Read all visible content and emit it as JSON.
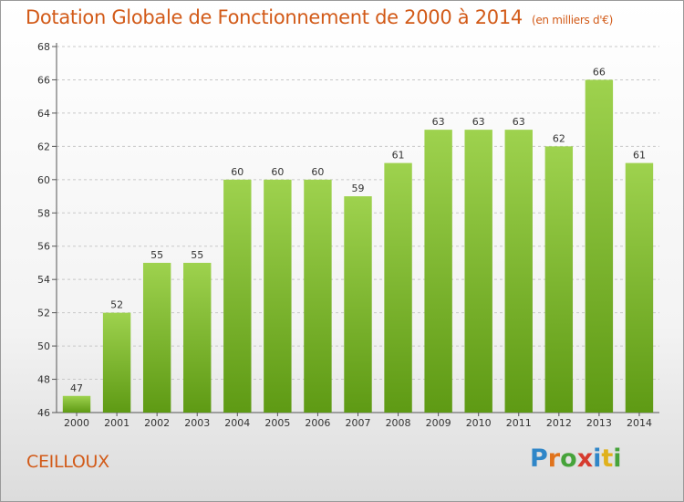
{
  "title": "Dotation Globale de Fonctionnement de 2000 à 2014",
  "unit_note": "(en milliers d'€)",
  "commune": "CEILLOUX",
  "logo_letters": [
    "P",
    "r",
    "o",
    "x",
    "i",
    "t",
    "i"
  ],
  "colors": {
    "title": "#d25a18",
    "bar_top": "#9ed24e",
    "bar_bottom": "#5e9a14",
    "grid": "#c8c8c8"
  },
  "chart_data": {
    "type": "bar",
    "title": "Dotation Globale de Fonctionnement de 2000 à 2014",
    "xlabel": "",
    "ylabel": "",
    "categories": [
      "2000",
      "2001",
      "2002",
      "2003",
      "2004",
      "2005",
      "2006",
      "2007",
      "2008",
      "2009",
      "2010",
      "2011",
      "2012",
      "2013",
      "2014"
    ],
    "values": [
      47,
      52,
      55,
      55,
      60,
      60,
      60,
      59,
      61,
      63,
      63,
      63,
      62,
      66,
      61
    ],
    "ylim": [
      46,
      68
    ],
    "yticks": [
      46,
      48,
      50,
      52,
      54,
      56,
      58,
      60,
      62,
      64,
      66,
      68
    ],
    "grid": true,
    "legend": "none"
  }
}
